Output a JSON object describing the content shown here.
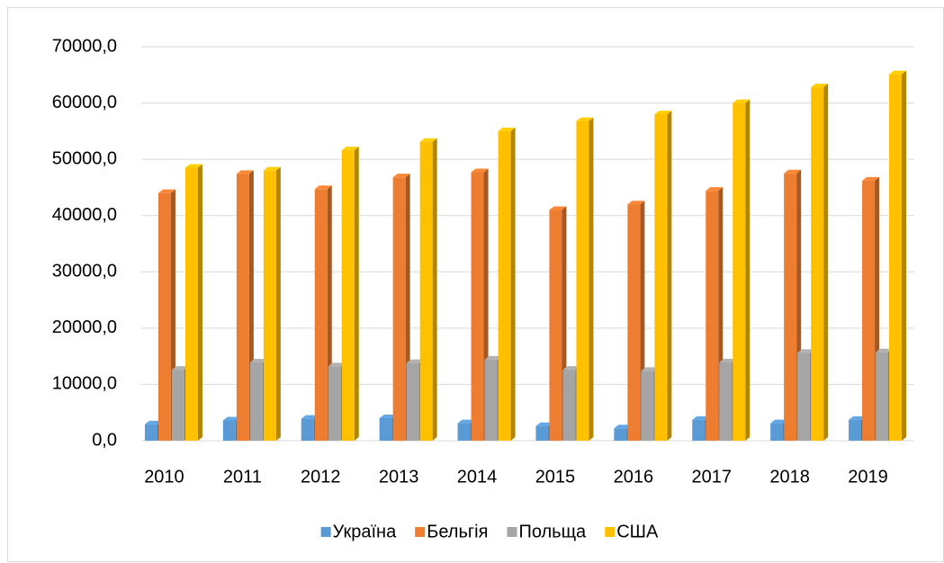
{
  "chart_data": {
    "type": "bar3d",
    "categories": [
      "2010",
      "2011",
      "2012",
      "2013",
      "2014",
      "2015",
      "2016",
      "2017",
      "2018",
      "2019"
    ],
    "series": [
      {
        "name": "Україна",
        "color": "#5b9bd5",
        "values": [
          2900,
          3600,
          3900,
          4000,
          3100,
          2600,
          2200,
          3700,
          3100,
          3700
        ]
      },
      {
        "name": "Бельгія",
        "color": "#ed7d31",
        "values": [
          44000,
          47400,
          44700,
          46800,
          47700,
          41000,
          42000,
          44400,
          47500,
          46200
        ]
      },
      {
        "name": "Польща",
        "color": "#a5a5a5",
        "values": [
          12600,
          13900,
          13200,
          13800,
          14400,
          12600,
          12400,
          13900,
          15600,
          15700
        ]
      },
      {
        "name": "США",
        "color": "#ffc000",
        "values": [
          48500,
          48000,
          51600,
          53100,
          55000,
          56800,
          58000,
          60000,
          62800,
          65100
        ]
      }
    ],
    "ylim": [
      0,
      70000
    ],
    "yticks": [
      {
        "value": 0,
        "label": "0,0"
      },
      {
        "value": 10000,
        "label": "10000,0"
      },
      {
        "value": 20000,
        "label": "20000,0"
      },
      {
        "value": 30000,
        "label": "30000,0"
      },
      {
        "value": 40000,
        "label": "40000,0"
      },
      {
        "value": 50000,
        "label": "50000,0"
      },
      {
        "value": 60000,
        "label": "60000,0"
      },
      {
        "value": 70000,
        "label": "70000,0"
      }
    ],
    "grid": true,
    "legend": "bottom"
  }
}
